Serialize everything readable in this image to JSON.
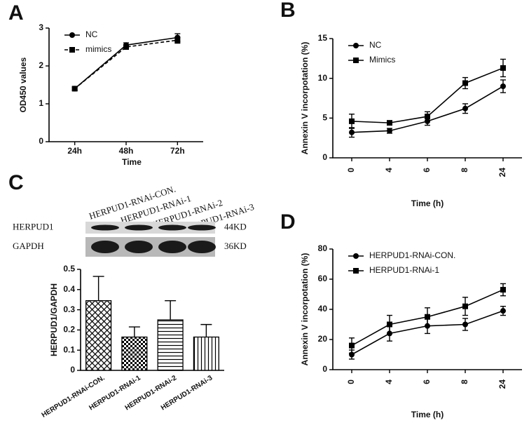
{
  "chart_data": [
    {
      "type": "line",
      "panel": "A",
      "xlabel": "Time",
      "ylabel": "OD450 values",
      "categories": [
        "24h",
        "48h",
        "72h"
      ],
      "ylim": [
        0,
        3
      ],
      "yticks": [
        0,
        1,
        2,
        3
      ],
      "legend": "upper left",
      "series": [
        {
          "name": "NC",
          "color": "#000000",
          "marker": "circle",
          "line_style": "solid",
          "values": [
            1.4,
            2.55,
            2.75
          ],
          "errors": [
            0.04,
            0.06,
            0.1
          ]
        },
        {
          "name": "mimics",
          "color": "#000000",
          "marker": "square",
          "line_style": "dashed",
          "values": [
            1.4,
            2.5,
            2.68
          ],
          "errors": [
            0.04,
            0.06,
            0.08
          ]
        }
      ]
    },
    {
      "type": "line",
      "panel": "B",
      "xlabel": "Time (h)",
      "ylabel": "Annexin V incorpotation (%)",
      "categories": [
        "0",
        "4",
        "6",
        "8",
        "24"
      ],
      "ylim": [
        0,
        15
      ],
      "yticks": [
        0,
        5,
        10,
        15
      ],
      "legend": "upper left",
      "series": [
        {
          "name": "NC",
          "color": "#000000",
          "marker": "circle",
          "line_style": "solid",
          "values": [
            3.2,
            3.4,
            4.6,
            6.2,
            9.0
          ],
          "errors": [
            0.6,
            0.3,
            0.5,
            0.6,
            0.8
          ]
        },
        {
          "name": "Mimics",
          "color": "#000000",
          "marker": "square",
          "line_style": "solid",
          "values": [
            4.6,
            4.4,
            5.2,
            9.4,
            11.3
          ],
          "errors": [
            0.9,
            0.2,
            0.6,
            0.7,
            1.1
          ]
        }
      ]
    },
    {
      "type": "bar",
      "panel": "C",
      "ylabel": "HERPUD1/GAPDH",
      "blot": {
        "lanes": [
          "HERPUD1-RNAi-CON.",
          "HERPUD1-RNAi-1",
          "HERPUD1-RNAi-2",
          "HERPUD1-RNAi-3"
        ],
        "rows": [
          {
            "name": "HERPUD1",
            "size": "44KD"
          },
          {
            "name": "GAPDH",
            "size": "36KD"
          }
        ]
      },
      "categories": [
        "HERPUD1-RNAi-CON.",
        "HERPUD1-RNAi-1",
        "HERPUD1-RNAi-2",
        "HERPUD1-RNAi-3"
      ],
      "values": [
        0.345,
        0.165,
        0.25,
        0.165
      ],
      "errors": [
        0.12,
        0.05,
        0.095,
        0.062
      ],
      "patterns": [
        "crosshatch",
        "checker",
        "horizontal",
        "vertical"
      ],
      "ylim": [
        0,
        0.5
      ],
      "yticks": [
        0,
        0.1,
        0.2,
        0.3,
        0.4,
        0.5
      ]
    },
    {
      "type": "line",
      "panel": "D",
      "xlabel": "Time (h)",
      "ylabel": "Annexin V incorpotation (%)",
      "categories": [
        "0",
        "4",
        "6",
        "8",
        "24"
      ],
      "ylim": [
        0,
        80
      ],
      "yticks": [
        0,
        20,
        40,
        60,
        80
      ],
      "legend": "upper left",
      "series": [
        {
          "name": "HERPUD1-RNAi-CON.",
          "color": "#000000",
          "marker": "circle",
          "line_style": "solid",
          "values": [
            10,
            24,
            29,
            30,
            39
          ],
          "errors": [
            3,
            5,
            5,
            4,
            3
          ]
        },
        {
          "name": "HERPUD1-RNAi-1",
          "color": "#000000",
          "marker": "square",
          "line_style": "solid",
          "values": [
            16,
            30,
            35,
            42,
            53
          ],
          "errors": [
            5,
            6,
            6,
            6,
            4
          ]
        }
      ]
    }
  ]
}
